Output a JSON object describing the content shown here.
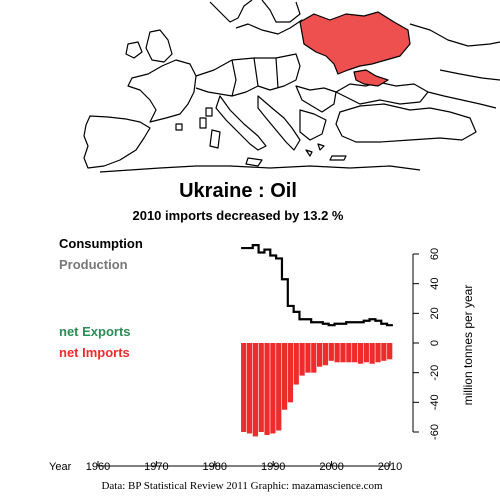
{
  "header": {
    "title": "Ukraine :  Oil",
    "subtitle": "2010 imports decreased by 13.2 %"
  },
  "legend": {
    "consumption": "Consumption",
    "production": "Production",
    "net_exports": "net Exports",
    "net_imports": "net Imports"
  },
  "footer": "Data: BP Statistical Review 2011    Graphic: mazamascience.com",
  "colors": {
    "consumption": "#000000",
    "production": "#777777",
    "net_exports": "#2e8b57",
    "net_imports": "#ee2c2c",
    "map_highlight": "#ee5050"
  },
  "chart_data": {
    "type": "bar",
    "title": "Ukraine :  Oil",
    "subtitle": "2010 imports decreased by 13.2 %",
    "xlabel": "Year",
    "ylabel": "million tonnes per year",
    "xlim": [
      1960,
      2010
    ],
    "ylim": [
      -60,
      60
    ],
    "x_ticks": [
      1960,
      1970,
      1980,
      1990,
      2000,
      2010
    ],
    "y_ticks": [
      -60,
      -40,
      -20,
      0,
      20,
      40,
      60
    ],
    "grid": false,
    "legend_position": "left",
    "years": [
      1985,
      1986,
      1987,
      1988,
      1989,
      1990,
      1991,
      1992,
      1993,
      1994,
      1995,
      1996,
      1997,
      1998,
      1999,
      2000,
      2001,
      2002,
      2003,
      2004,
      2005,
      2006,
      2007,
      2008,
      2009,
      2010
    ],
    "series": [
      {
        "name": "Consumption",
        "values": [
          64,
          64,
          66,
          61,
          63,
          59,
          57,
          43,
          25,
          21,
          16,
          16,
          14,
          14,
          13,
          12,
          13,
          13,
          14,
          14,
          14,
          15,
          16,
          15,
          13,
          12
        ]
      },
      {
        "name": "net Imports",
        "values": [
          -60,
          -61,
          -63,
          -60,
          -62,
          -61,
          -59,
          -45,
          -40,
          -28,
          -22,
          -20,
          -20,
          -16,
          -15,
          -12,
          -13,
          -13,
          -13,
          -13,
          -14,
          -13,
          -14,
          -13,
          -12,
          -11
        ]
      }
    ]
  }
}
